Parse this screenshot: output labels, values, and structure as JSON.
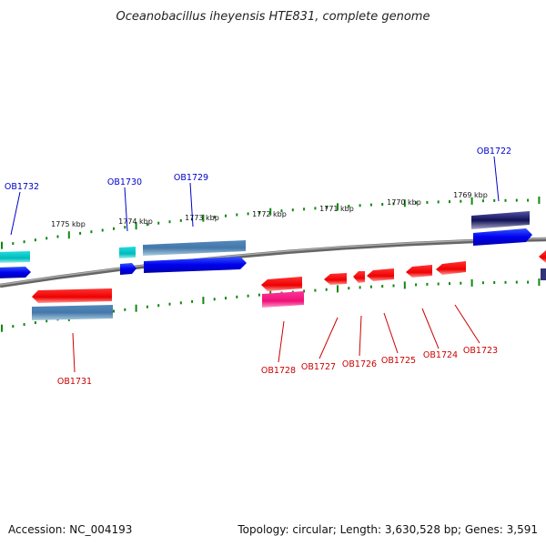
{
  "title": "Oceanobacillus iheyensis HTE831, complete genome",
  "accession_text": "Accession: NC_004193",
  "topology_text": "Topology: circular; Length: 3,630,528 bp; Genes: 3,591",
  "scale_labels": [
    "1775 kbp",
    "1774 kbp",
    "1773 kbp",
    "1772 kbp",
    "1771 kbp",
    "1770 kbp",
    "1769 kbp"
  ],
  "genes_top": [
    "OB1732",
    "OB1730",
    "OB1729",
    "OB1722"
  ],
  "genes_bottom": [
    "OB1731",
    "OB1728",
    "OB1727",
    "OB1726",
    "OB1725",
    "OB1724",
    "OB1723"
  ],
  "colors": {
    "backbone": "#888888",
    "tick": "#118811",
    "gene_forward": "#0000ee",
    "gene_forward_bar": "#4477aa",
    "gene_cyan": "#00bbbb",
    "gene_reverse": "#ee0000",
    "gene_magenta": "#ee1177",
    "gene_navy": "#222266",
    "label_top": "#0000cc",
    "label_bottom": "#cc0000"
  }
}
